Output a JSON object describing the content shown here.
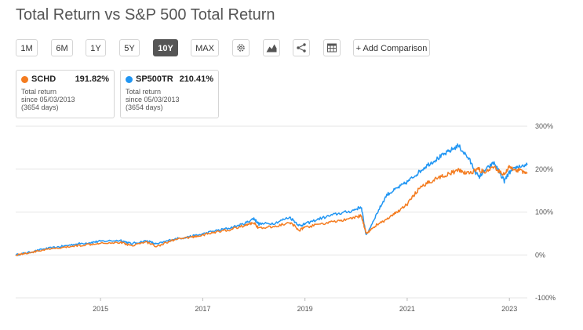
{
  "title": "Total Return vs S&P 500 Total Return",
  "toolbar": {
    "ranges": [
      "1M",
      "6M",
      "1Y",
      "5Y",
      "10Y",
      "MAX"
    ],
    "active_range": "10Y",
    "icons": [
      "gear-icon",
      "mountain-chart-icon",
      "share-icon",
      "table-icon"
    ],
    "add_comparison": "+ Add Comparison"
  },
  "cards": [
    {
      "symbol": "SCHD",
      "value": "191.82%",
      "label": "Total return",
      "since": "since 05/03/2013",
      "days": "(3654 days)",
      "color": "#f47c20"
    },
    {
      "symbol": "SP500TR",
      "value": "210.41%",
      "label": "Total return",
      "since": "since 05/03/2013",
      "days": "(3654 days)",
      "color": "#2196f3"
    }
  ],
  "chart_data": {
    "type": "line",
    "title": "",
    "xlabel": "",
    "ylabel": "",
    "x_ticks": [
      "2015",
      "2017",
      "2019",
      "2021",
      "2023"
    ],
    "y_ticks": [
      "300%",
      "200%",
      "100%",
      "0%",
      "-100%"
    ],
    "ylim": [
      -100,
      300
    ],
    "xlim": [
      2013.34,
      2023.35
    ],
    "grid": true,
    "series": [
      {
        "name": "SCHD",
        "color": "#f47c20",
        "x": [
          2013.34,
          2013.6,
          2013.9,
          2014.2,
          2014.5,
          2014.8,
          2015.0,
          2015.4,
          2015.6,
          2015.9,
          2016.1,
          2016.4,
          2016.7,
          2016.9,
          2017.2,
          2017.5,
          2017.8,
          2018.0,
          2018.1,
          2018.4,
          2018.7,
          2018.9,
          2019.0,
          2019.3,
          2019.6,
          2019.9,
          2020.1,
          2020.2,
          2020.4,
          2020.6,
          2020.8,
          2021.0,
          2021.2,
          2021.4,
          2021.6,
          2021.8,
          2022.0,
          2022.2,
          2022.4,
          2022.5,
          2022.7,
          2022.9,
          2023.0,
          2023.15,
          2023.35
        ],
        "values": [
          0,
          5,
          12,
          16,
          21,
          25,
          28,
          29,
          22,
          30,
          20,
          34,
          40,
          44,
          52,
          58,
          68,
          75,
          62,
          66,
          75,
          58,
          64,
          72,
          78,
          84,
          92,
          50,
          70,
          82,
          100,
          118,
          150,
          168,
          180,
          188,
          197,
          190,
          200,
          192,
          203,
          188,
          205,
          198,
          192
        ]
      },
      {
        "name": "SP500TR",
        "color": "#2196f3",
        "x": [
          2013.34,
          2013.6,
          2013.9,
          2014.2,
          2014.5,
          2014.8,
          2015.0,
          2015.4,
          2015.6,
          2015.9,
          2016.1,
          2016.4,
          2016.7,
          2016.9,
          2017.2,
          2017.5,
          2017.8,
          2018.0,
          2018.1,
          2018.4,
          2018.7,
          2018.9,
          2019.0,
          2019.3,
          2019.6,
          2019.9,
          2020.1,
          2020.2,
          2020.4,
          2020.6,
          2020.8,
          2021.0,
          2021.2,
          2021.4,
          2021.6,
          2021.8,
          2022.0,
          2022.2,
          2022.4,
          2022.5,
          2022.7,
          2022.9,
          2023.0,
          2023.15,
          2023.35
        ],
        "values": [
          0,
          6,
          14,
          19,
          25,
          29,
          32,
          34,
          26,
          33,
          25,
          36,
          42,
          46,
          55,
          62,
          72,
          85,
          72,
          74,
          88,
          68,
          72,
          85,
          95,
          102,
          112,
          45,
          95,
          140,
          155,
          170,
          190,
          210,
          225,
          240,
          255,
          225,
          180,
          195,
          215,
          172,
          192,
          205,
          210
        ]
      }
    ]
  }
}
